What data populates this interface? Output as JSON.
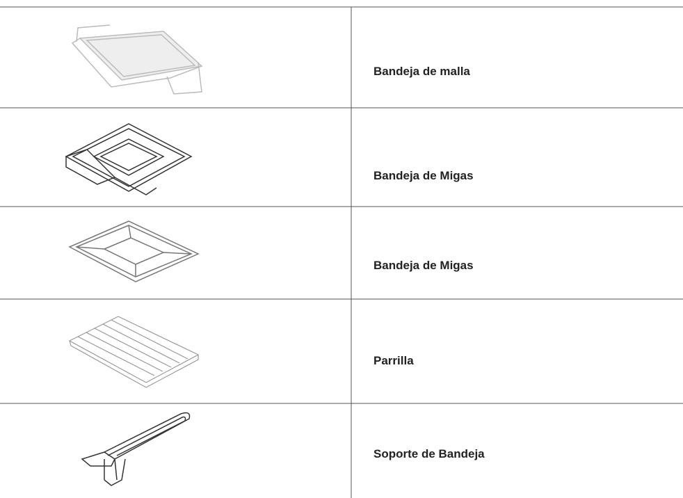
{
  "table": {
    "rows": [
      {
        "label": "Bandeja de malla"
      },
      {
        "label": "Bandeja de Migas"
      },
      {
        "label": "Bandeja de Migas"
      },
      {
        "label": "Parrilla"
      },
      {
        "label": "Soporte de Bandeja"
      }
    ]
  }
}
